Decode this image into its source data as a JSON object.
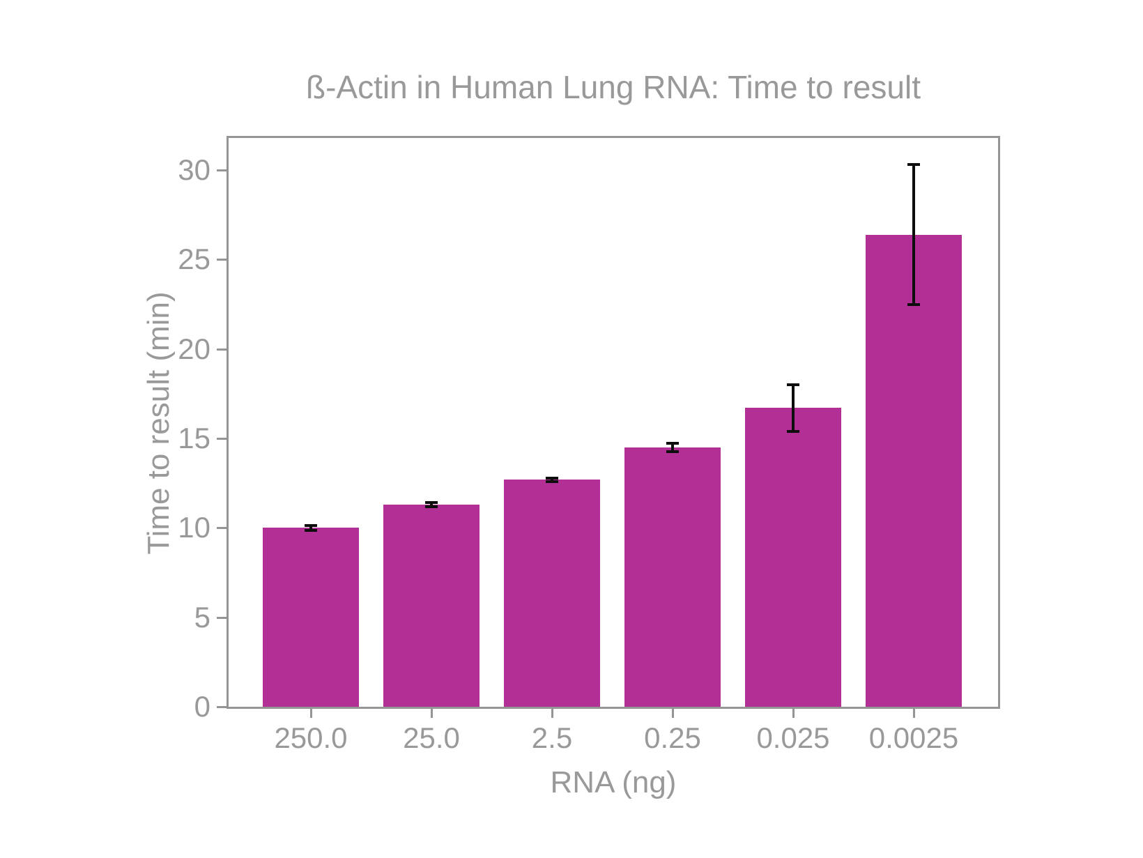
{
  "chart_data": {
    "type": "bar",
    "title": "ß-Actin in Human Lung RNA: Time to result",
    "xlabel": "RNA (ng)",
    "ylabel": "Time to result (min)",
    "categories": [
      "250.0",
      "25.0",
      "2.5",
      "0.25",
      "0.025",
      "0.0025"
    ],
    "values": [
      10.0,
      11.3,
      12.7,
      14.5,
      16.7,
      26.4
    ],
    "errors": [
      0.15,
      0.1,
      0.1,
      0.25,
      1.3,
      3.9
    ],
    "yticks": [
      0,
      5,
      10,
      15,
      20,
      25,
      30
    ],
    "ylim": [
      0,
      31.8
    ],
    "grid": false,
    "legend": false,
    "colors": {
      "bar": "#b23095",
      "error": "#0d0d0d",
      "text": "#999999",
      "spine": "#959595",
      "background": "#ffffff"
    }
  }
}
